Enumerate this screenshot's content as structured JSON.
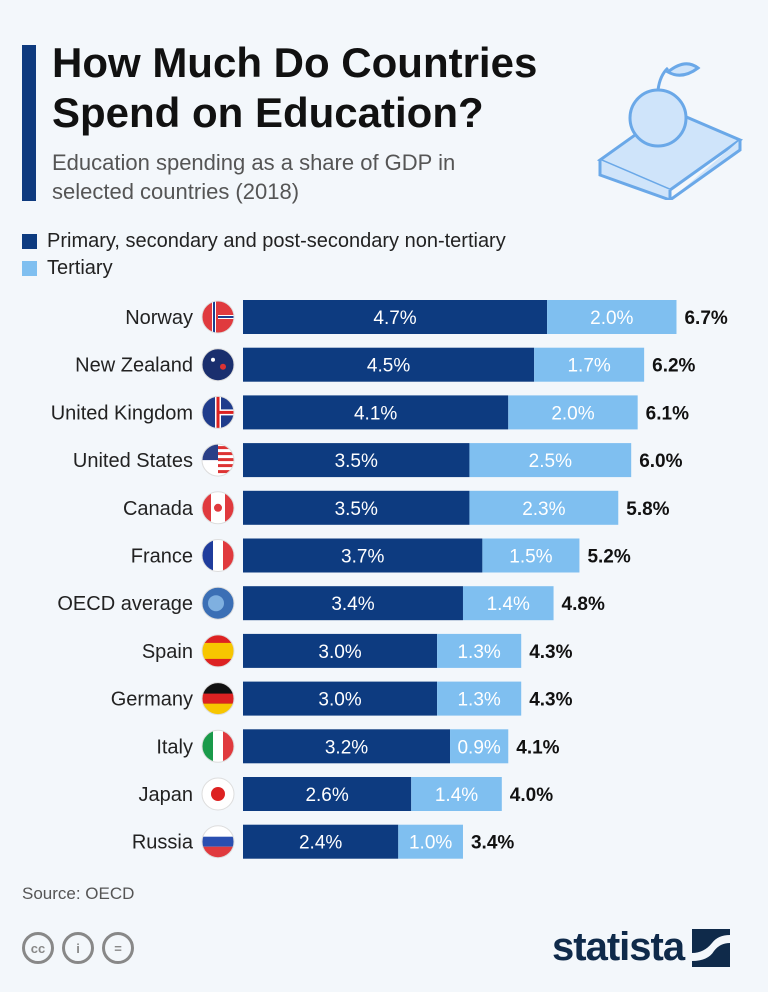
{
  "title": "How Much Do Countries Spend on Education?",
  "subtitle": "Education spending as a share of GDP in selected countries (2018)",
  "source": "Source: OECD",
  "brand": "statista",
  "colors": {
    "primary": "#0d3b80",
    "tertiary": "#7fbff0",
    "background": "#f3f7fb"
  },
  "chart_data": {
    "type": "bar",
    "stacked": true,
    "orientation": "horizontal",
    "categories": [
      "Norway",
      "New Zealand",
      "United Kingdom",
      "United States",
      "Canada",
      "France",
      "OECD average",
      "Spain",
      "Germany",
      "Italy",
      "Japan",
      "Russia"
    ],
    "series": [
      {
        "name": "Primary, secondary and post-secondary non-tertiary",
        "values": [
          4.7,
          4.5,
          4.1,
          3.5,
          3.5,
          3.7,
          3.4,
          3.0,
          3.0,
          3.2,
          2.6,
          2.4
        ]
      },
      {
        "name": "Tertiary",
        "values": [
          2.0,
          1.7,
          2.0,
          2.5,
          2.3,
          1.5,
          1.4,
          1.3,
          1.3,
          0.9,
          1.4,
          1.0
        ]
      }
    ],
    "totals": [
      6.7,
      6.2,
      6.1,
      6.0,
      5.8,
      5.2,
      4.8,
      4.3,
      4.3,
      4.1,
      4.0,
      3.4
    ],
    "unit": "%",
    "legend": "top-left",
    "grid": false
  }
}
